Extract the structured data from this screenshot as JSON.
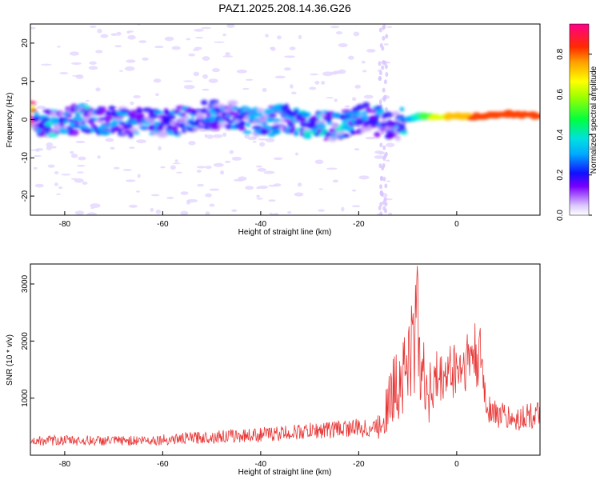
{
  "title": "PAZ1.2025.208.14.36.G26",
  "colors": {
    "snr_line": "#e83535",
    "axis": "#000000"
  },
  "chart_data": [
    {
      "type": "heatmap",
      "xlabel": "Height of straight line (km)",
      "ylabel": "Frequency (Hz)",
      "xlim": [
        -87,
        17
      ],
      "ylim": [
        -25,
        25
      ],
      "xticks": [
        -80,
        -60,
        -40,
        -20,
        0
      ],
      "yticks": [
        -20,
        -10,
        0,
        10,
        20
      ],
      "colorbar": {
        "label": "Normalized spectral amplitude",
        "range": [
          0.0,
          0.95
        ],
        "ticks": [
          0.0,
          0.2,
          0.4,
          0.6,
          0.8
        ],
        "colormap": "rainbow"
      },
      "ridge": [
        {
          "x": -86,
          "y": -1.2,
          "amp": 0.3
        },
        {
          "x": -80,
          "y": -0.4,
          "amp": 0.28
        },
        {
          "x": -75,
          "y": 0.3,
          "amp": 0.3
        },
        {
          "x": -70,
          "y": -0.5,
          "amp": 0.27
        },
        {
          "x": -64,
          "y": -0.8,
          "amp": 0.25
        },
        {
          "x": -58,
          "y": -0.6,
          "amp": 0.28
        },
        {
          "x": -52,
          "y": 1.2,
          "amp": 0.26
        },
        {
          "x": -47,
          "y": 1.5,
          "amp": 0.27
        },
        {
          "x": -40,
          "y": -0.9,
          "amp": 0.28
        },
        {
          "x": -35,
          "y": 0.4,
          "amp": 0.3
        },
        {
          "x": -30,
          "y": -2.0,
          "amp": 0.32
        },
        {
          "x": -24,
          "y": -1.5,
          "amp": 0.3
        },
        {
          "x": -18,
          "y": 0.5,
          "amp": 0.28
        },
        {
          "x": -13,
          "y": -2.0,
          "amp": 0.25
        },
        {
          "x": -10,
          "y": 0.0,
          "amp": 0.4
        },
        {
          "x": -8,
          "y": 0.8,
          "amp": 0.55
        },
        {
          "x": -5,
          "y": 0.8,
          "amp": 0.7
        },
        {
          "x": 0,
          "y": 0.9,
          "amp": 0.85
        },
        {
          "x": 5,
          "y": 0.8,
          "amp": 0.9
        },
        {
          "x": 10,
          "y": 1.5,
          "amp": 0.92
        },
        {
          "x": 16,
          "y": 1.0,
          "amp": 0.95
        }
      ]
    },
    {
      "type": "line",
      "xlabel": "Height of straight line (km)",
      "ylabel": "SNR (10 * v/v)",
      "xlim": [
        -87,
        17
      ],
      "ylim": [
        0,
        3350
      ],
      "xticks": [
        -80,
        -60,
        -40,
        -20,
        0
      ],
      "yticks": [
        1000,
        2000,
        3000
      ],
      "series": [
        {
          "points": [
            [
              -87,
              250
            ],
            [
              -80,
              260
            ],
            [
              -70,
              250
            ],
            [
              -60,
              270
            ],
            [
              -50,
              320
            ],
            [
              -40,
              360
            ],
            [
              -30,
              420
            ],
            [
              -22,
              480
            ],
            [
              -18,
              460
            ],
            [
              -16,
              520
            ],
            [
              -14,
              900
            ],
            [
              -12,
              1300
            ],
            [
              -10,
              1600
            ],
            [
              -9,
              1800
            ],
            [
              -8,
              2500
            ],
            [
              -7.5,
              2000
            ],
            [
              -7,
              1300
            ],
            [
              -5,
              1150
            ],
            [
              -3,
              1350
            ],
            [
              -1,
              1500
            ],
            [
              1,
              1550
            ],
            [
              3,
              1750
            ],
            [
              5,
              1650
            ],
            [
              6,
              900
            ],
            [
              8,
              720
            ],
            [
              10,
              680
            ],
            [
              12,
              600
            ],
            [
              14,
              700
            ],
            [
              17,
              680
            ]
          ]
        }
      ]
    }
  ]
}
